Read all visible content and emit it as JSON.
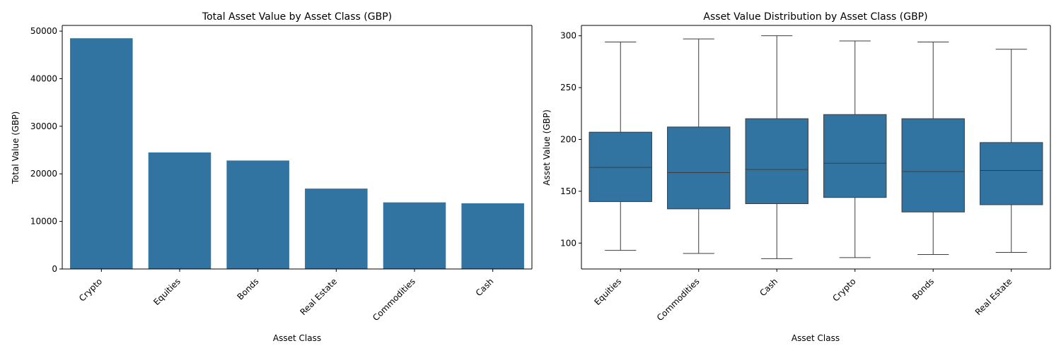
{
  "chart_data": [
    {
      "type": "bar",
      "title": "Total Asset Value by Asset Class (GBP)",
      "xlabel": "Asset Class",
      "ylabel": "Total Value (GBP)",
      "categories": [
        "Crypto",
        "Equities",
        "Bonds",
        "Real Estate",
        "Commodities",
        "Cash"
      ],
      "values": [
        48500,
        24500,
        22800,
        16900,
        14000,
        13800
      ],
      "ylim": [
        0,
        51200
      ],
      "yticks": [
        0,
        10000,
        20000,
        30000,
        40000,
        50000
      ],
      "color": "#3274a1",
      "grid": false,
      "legend": "none"
    },
    {
      "type": "box",
      "title": "Asset Value Distribution by Asset Class (GBP)",
      "xlabel": "Asset Class",
      "ylabel": "Asset Value (GBP)",
      "categories": [
        "Equities",
        "Commodities",
        "Cash",
        "Crypto",
        "Bonds",
        "Real Estate"
      ],
      "series": [
        {
          "category": "Equities",
          "min": 93,
          "q1": 140,
          "median": 173,
          "q3": 207,
          "max": 294
        },
        {
          "category": "Commodities",
          "min": 90,
          "q1": 133,
          "median": 168,
          "q3": 212,
          "max": 297
        },
        {
          "category": "Cash",
          "min": 85,
          "q1": 138,
          "median": 171,
          "q3": 220,
          "max": 300
        },
        {
          "category": "Crypto",
          "min": 86,
          "q1": 144,
          "median": 177,
          "q3": 224,
          "max": 295
        },
        {
          "category": "Bonds",
          "min": 89,
          "q1": 130,
          "median": 169,
          "q3": 220,
          "max": 294
        },
        {
          "category": "Real Estate",
          "min": 91,
          "q1": 137,
          "median": 170,
          "q3": 197,
          "max": 287
        }
      ],
      "ylim": [
        75,
        310
      ],
      "yticks": [
        100,
        150,
        200,
        250,
        300
      ],
      "color": "#3274a1",
      "grid": false,
      "legend": "none"
    }
  ]
}
